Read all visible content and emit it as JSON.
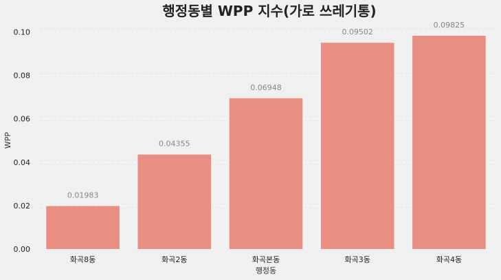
{
  "chart_data": {
    "type": "bar",
    "title": "행정동별 WPP 지수(가로 쓰레기통)",
    "xlabel": "행정동",
    "ylabel": "WPP",
    "categories": [
      "화곡8동",
      "화곡2동",
      "화곡본동",
      "화곡3동",
      "화곡4동"
    ],
    "values": [
      0.01983,
      0.04355,
      0.06948,
      0.09502,
      0.09825
    ],
    "data_labels": [
      "0.01983",
      "0.04355",
      "0.06948",
      "0.09502",
      "0.09825"
    ],
    "ylim": [
      0,
      0.1
    ],
    "yticks": [
      0.0,
      0.02,
      0.04,
      0.06,
      0.08,
      0.1
    ],
    "ytick_labels": [
      "0.00",
      "0.02",
      "0.04",
      "0.06",
      "0.08",
      "0.10"
    ],
    "grid": true,
    "bar_color": "#e98e82",
    "background_color": "#f0f0f0"
  }
}
